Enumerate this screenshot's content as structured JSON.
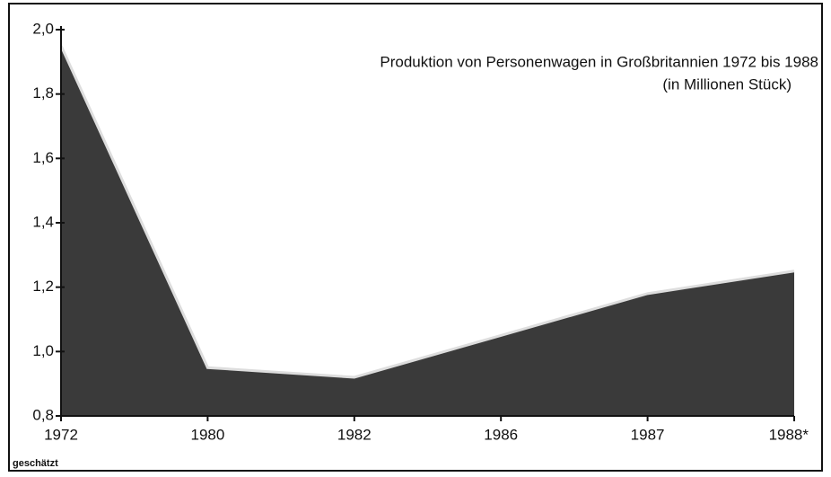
{
  "chart_data": {
    "type": "area",
    "title": "Produktion von Personenwagen in Großbritannien 1972 bis 1988",
    "subtitle": "(in Millionen Stück)",
    "footnote": "geschätzt",
    "categories": [
      "1972",
      "1980",
      "1982",
      "1986",
      "1987",
      "1988*"
    ],
    "values": [
      1.95,
      0.95,
      0.92,
      1.05,
      1.18,
      1.25
    ],
    "color": "#3a3a3a",
    "ylim": [
      0.8,
      2.0
    ],
    "yticks": [
      {
        "value": 0.8,
        "label": "0,8"
      },
      {
        "value": 1.0,
        "label": "1,0"
      },
      {
        "value": 1.2,
        "label": "1,2"
      },
      {
        "value": 1.4,
        "label": "1,4"
      },
      {
        "value": 1.6,
        "label": "1,6"
      },
      {
        "value": 1.8,
        "label": "1,8"
      },
      {
        "value": 2.0,
        "label": "2,0"
      }
    ]
  }
}
